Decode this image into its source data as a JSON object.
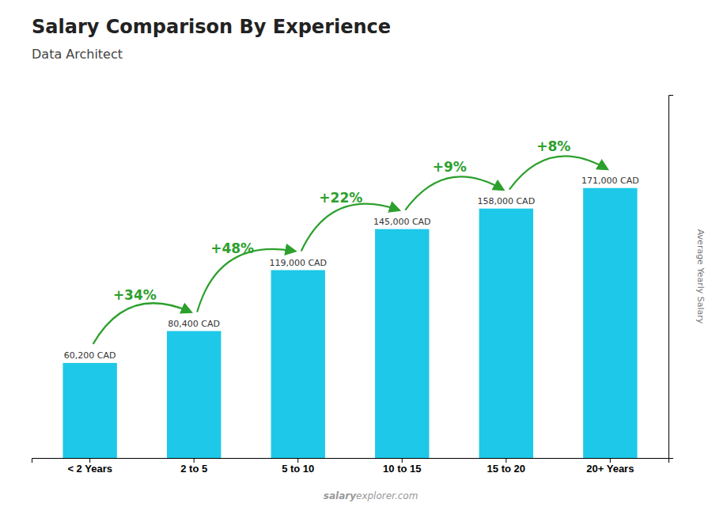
{
  "chart_data": {
    "type": "bar",
    "title": "Salary Comparison By Experience",
    "subtitle": "Data Architect",
    "categories": [
      "< 2 Years",
      "2 to 5",
      "5 to 10",
      "10 to 15",
      "15 to 20",
      "20+ Years"
    ],
    "values": [
      60200,
      80400,
      119000,
      145000,
      158000,
      171000
    ],
    "value_labels": [
      "60,200 CAD",
      "80,400 CAD",
      "119,000 CAD",
      "145,000 CAD",
      "158,000 CAD",
      "171,000 CAD"
    ],
    "data_labels": true,
    "color": "#1ec8e8",
    "ylabel": "Average Yearly Salary",
    "ylim": [
      0,
      230000
    ],
    "tick_labels": "x",
    "grid": false,
    "annotations": [
      "+34%",
      "+48%",
      "+22%",
      "+9%",
      "+8%"
    ],
    "watermark": [
      "salary",
      "explorer.com"
    ]
  }
}
